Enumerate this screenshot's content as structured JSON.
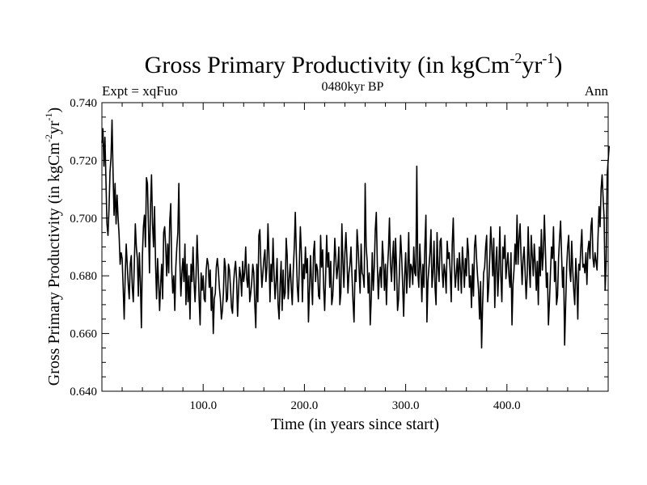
{
  "chart_data": {
    "type": "line",
    "title_main": "Gross Primary Productivity (in kgCm",
    "title_sup1": "-2",
    "title_mid": "yr",
    "title_sup2": "-1",
    "title_end": ")",
    "subtitle_left": "Expt = xqFuo",
    "subtitle_center": "0480kyr BP",
    "subtitle_right": "Ann",
    "xlabel": "Time (in years since start)",
    "ylabel_main": "Gross Primary Productivity (in kgCm",
    "ylabel_sup1": "-2",
    "ylabel_mid": "yr",
    "ylabel_sup2": "-1",
    "ylabel_end": ")",
    "xlim": [
      0,
      500
    ],
    "ylim": [
      0.64,
      0.74
    ],
    "x_ticks": [
      100,
      200,
      300,
      400
    ],
    "x_tick_labels": [
      "100.0",
      "200.0",
      "300.0",
      "400.0"
    ],
    "y_ticks": [
      0.64,
      0.66,
      0.68,
      0.7,
      0.72,
      0.74
    ],
    "y_tick_labels": [
      "0.640",
      "0.660",
      "0.680",
      "0.700",
      "0.720",
      "0.740"
    ],
    "series": [
      {
        "name": "Gross Primary Productivity",
        "x_start": 0,
        "x_step": 1,
        "values": [
          0.726,
          0.731,
          0.718,
          0.728,
          0.713,
          0.698,
          0.694,
          0.703,
          0.716,
          0.721,
          0.734,
          0.716,
          0.701,
          0.712,
          0.698,
          0.708,
          0.7,
          0.694,
          0.684,
          0.688,
          0.686,
          0.676,
          0.665,
          0.68,
          0.691,
          0.684,
          0.677,
          0.672,
          0.684,
          0.687,
          0.676,
          0.671,
          0.684,
          0.698,
          0.69,
          0.686,
          0.673,
          0.688,
          0.678,
          0.662,
          0.687,
          0.697,
          0.701,
          0.69,
          0.714,
          0.712,
          0.697,
          0.681,
          0.704,
          0.715,
          0.698,
          0.69,
          0.704,
          0.684,
          0.672,
          0.686,
          0.678,
          0.668,
          0.677,
          0.684,
          0.672,
          0.695,
          0.697,
          0.69,
          0.68,
          0.691,
          0.681,
          0.699,
          0.705,
          0.682,
          0.674,
          0.68,
          0.668,
          0.683,
          0.69,
          0.695,
          0.712,
          0.685,
          0.673,
          0.681,
          0.686,
          0.678,
          0.691,
          0.67,
          0.684,
          0.671,
          0.68,
          0.665,
          0.684,
          0.678,
          0.69,
          0.678,
          0.671,
          0.68,
          0.694,
          0.684,
          0.672,
          0.663,
          0.681,
          0.675,
          0.68,
          0.672,
          0.671,
          0.682,
          0.686,
          0.684,
          0.676,
          0.682,
          0.668,
          0.676,
          0.66,
          0.672,
          0.674,
          0.683,
          0.686,
          0.682,
          0.676,
          0.672,
          0.665,
          0.668,
          0.674,
          0.686,
          0.683,
          0.671,
          0.672,
          0.684,
          0.682,
          0.676,
          0.669,
          0.667,
          0.677,
          0.682,
          0.685,
          0.679,
          0.666,
          0.675,
          0.683,
          0.68,
          0.673,
          0.685,
          0.678,
          0.681,
          0.69,
          0.679,
          0.676,
          0.684,
          0.671,
          0.674,
          0.678,
          0.684,
          0.681,
          0.67,
          0.662,
          0.684,
          0.671,
          0.694,
          0.696,
          0.684,
          0.676,
          0.681,
          0.686,
          0.689,
          0.678,
          0.683,
          0.698,
          0.687,
          0.671,
          0.684,
          0.678,
          0.693,
          0.681,
          0.672,
          0.678,
          0.686,
          0.67,
          0.665,
          0.677,
          0.685,
          0.668,
          0.682,
          0.672,
          0.674,
          0.693,
          0.687,
          0.672,
          0.679,
          0.684,
          0.676,
          0.67,
          0.682,
          0.69,
          0.702,
          0.688,
          0.676,
          0.671,
          0.684,
          0.697,
          0.688,
          0.671,
          0.684,
          0.679,
          0.69,
          0.681,
          0.686,
          0.664,
          0.675,
          0.687,
          0.678,
          0.67,
          0.688,
          0.692,
          0.678,
          0.684,
          0.682,
          0.673,
          0.672,
          0.694,
          0.683,
          0.689,
          0.676,
          0.668,
          0.68,
          0.694,
          0.683,
          0.688,
          0.676,
          0.685,
          0.67,
          0.673,
          0.681,
          0.693,
          0.686,
          0.679,
          0.683,
          0.69,
          0.67,
          0.674,
          0.698,
          0.685,
          0.676,
          0.688,
          0.695,
          0.686,
          0.674,
          0.681,
          0.684,
          0.69,
          0.68,
          0.671,
          0.664,
          0.682,
          0.678,
          0.696,
          0.69,
          0.682,
          0.674,
          0.691,
          0.681,
          0.68,
          0.676,
          0.712,
          0.69,
          0.685,
          0.674,
          0.681,
          0.663,
          0.672,
          0.688,
          0.675,
          0.683,
          0.696,
          0.702,
          0.684,
          0.672,
          0.68,
          0.683,
          0.676,
          0.692,
          0.686,
          0.675,
          0.684,
          0.67,
          0.682,
          0.689,
          0.7,
          0.684,
          0.678,
          0.686,
          0.692,
          0.675,
          0.693,
          0.683,
          0.668,
          0.672,
          0.683,
          0.694,
          0.687,
          0.677,
          0.666,
          0.68,
          0.688,
          0.674,
          0.682,
          0.695,
          0.676,
          0.684,
          0.683,
          0.677,
          0.69,
          0.681,
          0.68,
          0.718,
          0.681,
          0.676,
          0.691,
          0.682,
          0.671,
          0.684,
          0.676,
          0.691,
          0.701,
          0.664,
          0.678,
          0.683,
          0.688,
          0.696,
          0.676,
          0.681,
          0.692,
          0.676,
          0.67,
          0.695,
          0.683,
          0.678,
          0.692,
          0.693,
          0.682,
          0.676,
          0.684,
          0.681,
          0.674,
          0.692,
          0.686,
          0.688,
          0.681,
          0.671,
          0.691,
          0.7,
          0.684,
          0.676,
          0.681,
          0.686,
          0.675,
          0.688,
          0.682,
          0.674,
          0.69,
          0.684,
          0.676,
          0.686,
          0.68,
          0.693,
          0.688,
          0.676,
          0.68,
          0.669,
          0.684,
          0.673,
          0.69,
          0.694,
          0.686,
          0.68,
          0.675,
          0.665,
          0.678,
          0.655,
          0.67,
          0.681,
          0.683,
          0.69,
          0.694,
          0.671,
          0.676,
          0.686,
          0.697,
          0.69,
          0.68,
          0.693,
          0.669,
          0.684,
          0.69,
          0.673,
          0.682,
          0.697,
          0.68,
          0.671,
          0.69,
          0.686,
          0.694,
          0.679,
          0.684,
          0.688,
          0.68,
          0.676,
          0.688,
          0.663,
          0.677,
          0.682,
          0.691,
          0.684,
          0.701,
          0.684,
          0.693,
          0.698,
          0.686,
          0.677,
          0.686,
          0.69,
          0.681,
          0.672,
          0.68,
          0.697,
          0.684,
          0.676,
          0.694,
          0.687,
          0.68,
          0.691,
          0.684,
          0.675,
          0.685,
          0.67,
          0.69,
          0.68,
          0.696,
          0.682,
          0.688,
          0.701,
          0.689,
          0.676,
          0.681,
          0.663,
          0.671,
          0.681,
          0.69,
          0.686,
          0.697,
          0.678,
          0.685,
          0.67,
          0.673,
          0.686,
          0.693,
          0.699,
          0.687,
          0.676,
          0.683,
          0.656,
          0.67,
          0.683,
          0.69,
          0.694,
          0.682,
          0.678,
          0.692,
          0.682,
          0.675,
          0.67,
          0.686,
          0.679,
          0.665,
          0.684,
          0.682,
          0.69,
          0.696,
          0.683,
          0.684,
          0.681,
          0.688,
          0.677,
          0.689,
          0.692,
          0.686,
          0.697,
          0.7,
          0.686,
          0.683,
          0.688,
          0.685,
          0.682,
          0.694,
          0.704,
          0.697,
          0.71,
          0.715,
          0.707,
          0.7,
          0.675,
          0.685,
          0.715,
          0.72,
          0.725
        ]
      }
    ]
  }
}
